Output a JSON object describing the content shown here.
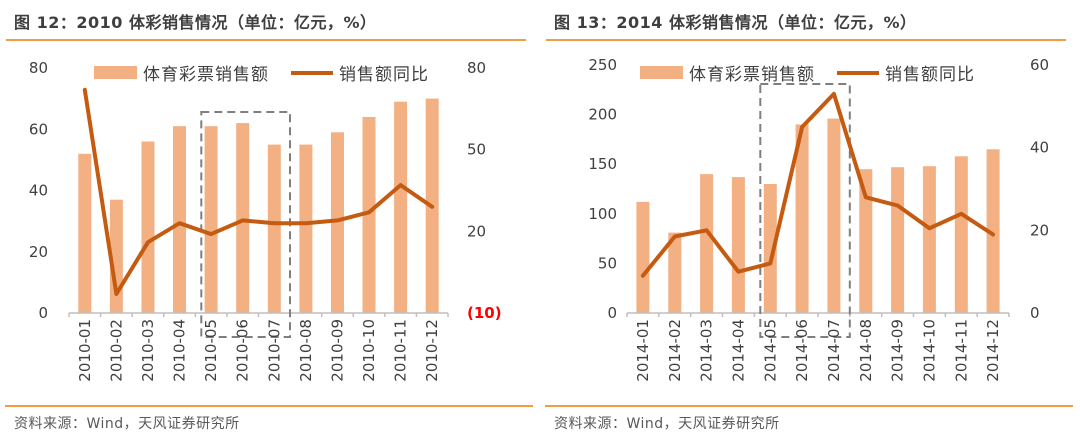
{
  "panels": [
    {
      "title": "图 12：2010 体彩销售情况（单位：亿元，%）",
      "source": "资料来源：Wind，天风证券研究所",
      "chart_data": {
        "type": "bar+line-combo",
        "categories": [
          "2010-01",
          "2010-02",
          "2010-03",
          "2010-04",
          "2010-05",
          "2010-06",
          "2010-07",
          "2010-08",
          "2010-09",
          "2010-10",
          "2010-11",
          "2010-12"
        ],
        "series": [
          {
            "name": "体育彩票销售额",
            "type": "bar",
            "axis": "left",
            "color": "#f2b083",
            "values": [
              52,
              37,
              56,
              61,
              61,
              62,
              55,
              55,
              59,
              64,
              69,
              70
            ]
          },
          {
            "name": "销售额同比",
            "type": "line",
            "axis": "right",
            "color": "#c55a11",
            "values": [
              72,
              -3,
              16,
              23,
              19,
              24,
              23,
              23,
              24,
              27,
              37,
              29
            ]
          }
        ],
        "left_axis": {
          "min": 0,
          "max": 80,
          "ticks": [
            0,
            20,
            40,
            60,
            80
          ]
        },
        "right_axis": {
          "min": -10,
          "max": 80,
          "ticks": [
            {
              "value": 80,
              "label": "80",
              "color": "#404040"
            },
            {
              "value": 50,
              "label": "50",
              "color": "#404040"
            },
            {
              "value": 20,
              "label": "20",
              "color": "#404040"
            },
            {
              "value": -10,
              "label": "(10)",
              "color": "#ff0000"
            }
          ]
        },
        "highlight_box": {
          "from": "2010-05",
          "to": "2010-07",
          "style": "gray-dashed"
        },
        "legend_position": "top",
        "grid": "off"
      }
    },
    {
      "title": "图 13：2014 体彩销售情况（单位：亿元，%）",
      "source": "资料来源：Wind，天风证券研究所",
      "chart_data": {
        "type": "bar+line-combo",
        "categories": [
          "2014-01",
          "2014-02",
          "2014-03",
          "2014-04",
          "2014-05",
          "2014-06",
          "2014-07",
          "2014-08",
          "2014-09",
          "2014-10",
          "2014-11",
          "2014-12"
        ],
        "series": [
          {
            "name": "体育彩票销售额",
            "type": "bar",
            "axis": "left",
            "color": "#f2b083",
            "values": [
              112,
              81,
              140,
              137,
              130,
              190,
              196,
              145,
              147,
              148,
              158,
              165
            ]
          },
          {
            "name": "销售额同比",
            "type": "line",
            "axis": "right",
            "color": "#c55a11",
            "values": [
              9,
              18.5,
              20,
              10,
              12,
              45,
              53,
              28,
              26,
              20.5,
              24,
              19
            ]
          }
        ],
        "left_axis": {
          "min": 0,
          "max": 250,
          "ticks": [
            0,
            50,
            100,
            150,
            200,
            250
          ]
        },
        "right_axis": {
          "min": 0,
          "max": 60,
          "ticks": [
            {
              "value": 60,
              "label": "60",
              "color": "#404040"
            },
            {
              "value": 40,
              "label": "40",
              "color": "#404040"
            },
            {
              "value": 20,
              "label": "20",
              "color": "#404040"
            },
            {
              "value": 0,
              "label": "0",
              "color": "#404040"
            }
          ]
        },
        "highlight_box": {
          "from": "2014-05",
          "to": "2014-07",
          "style": "gray-dashed"
        },
        "legend_position": "top",
        "grid": "off"
      }
    }
  ],
  "colors": {
    "bar_fill": "#f2b083",
    "line_stroke": "#c55a11",
    "title_text": "#3f3f3f",
    "rule_orange": "#f09d43",
    "axis_text": "#404040",
    "negative_tick_red": "#ff0000",
    "axis_line": "#bfbfbf",
    "highlight_dash": "#7f7f7f",
    "source_text": "#595959"
  }
}
